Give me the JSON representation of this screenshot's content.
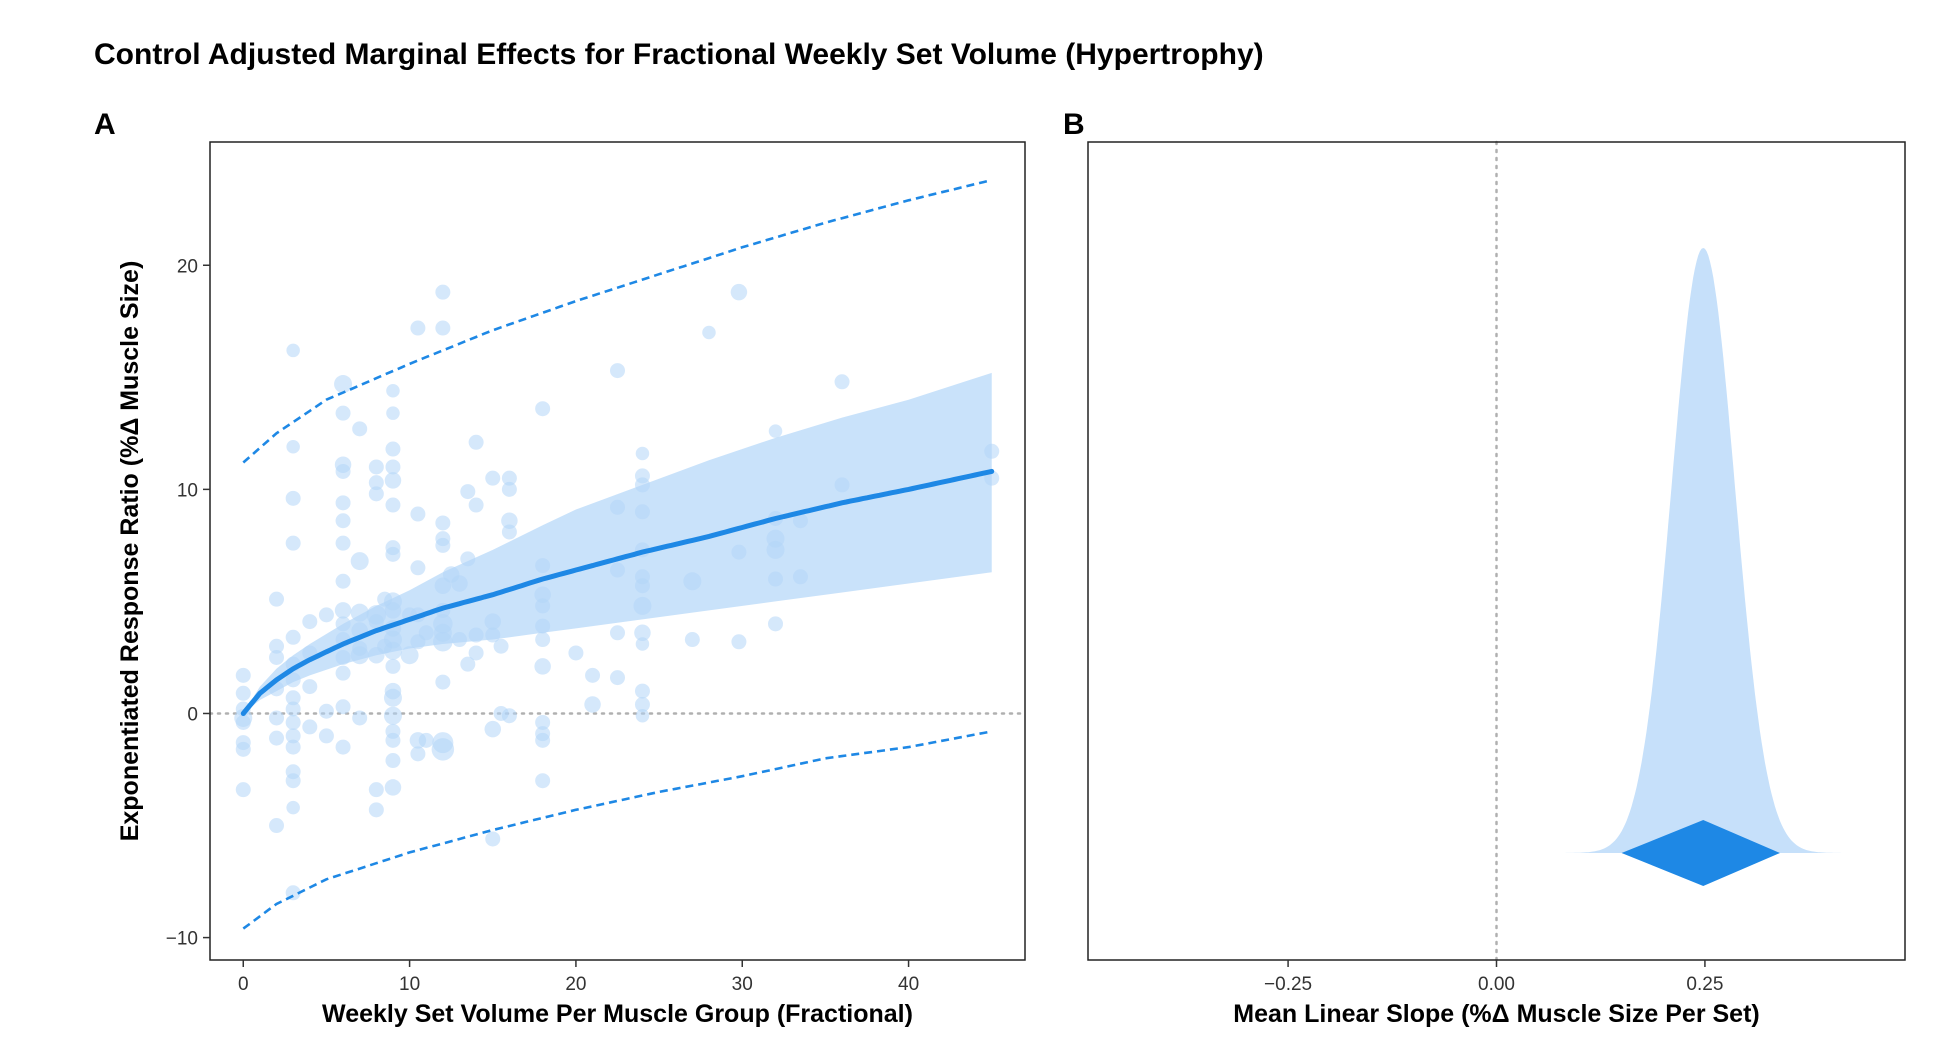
{
  "title": "Control Adjusted Marginal Effects for Fractional Weekly Set Volume (Hypertrophy)",
  "panel_labels": {
    "a": "A",
    "b": "B"
  },
  "colors": {
    "accent": "#1e88e5",
    "fill": "#c6e0fa",
    "points": "#b3d6f7",
    "reference": "#b0b0b0"
  },
  "chart_data": [
    {
      "panel": "A",
      "type": "scatter",
      "xlabel": "Weekly Set Volume Per Muscle Group (Fractional)",
      "ylabel": "Exponentiated Response Ratio (%Δ Muscle Size)",
      "xlim": [
        -2,
        47
      ],
      "ylim": [
        -11,
        25.5
      ],
      "xticks": [
        0,
        10,
        20,
        30,
        40
      ],
      "yticks": [
        -10,
        0,
        10,
        20
      ],
      "reference_line_y": 0,
      "grid": false,
      "fit_line": {
        "x": [
          0,
          1,
          2,
          3,
          4,
          6,
          8,
          10,
          12,
          15,
          18,
          20,
          24,
          28,
          32,
          36,
          40,
          45
        ],
        "y": [
          0,
          0.9,
          1.5,
          2.0,
          2.4,
          3.1,
          3.7,
          4.2,
          4.7,
          5.3,
          6.0,
          6.4,
          7.2,
          7.9,
          8.7,
          9.4,
          10.0,
          10.8
        ]
      },
      "confidence_band": {
        "x": [
          0,
          1,
          2,
          3,
          4,
          6,
          8,
          10,
          12,
          15,
          18,
          20,
          24,
          28,
          32,
          36,
          40,
          45
        ],
        "lower": [
          0,
          0.6,
          1.0,
          1.4,
          1.7,
          2.2,
          2.6,
          2.9,
          3.1,
          3.3,
          3.6,
          3.8,
          4.2,
          4.6,
          5.0,
          5.4,
          5.8,
          6.3
        ],
        "upper": [
          0,
          1.2,
          2.0,
          2.6,
          3.1,
          4.0,
          4.8,
          5.5,
          6.3,
          7.3,
          8.4,
          9.1,
          10.2,
          11.3,
          12.3,
          13.2,
          14.0,
          15.2
        ]
      },
      "prediction_interval": {
        "x": [
          0,
          2,
          5,
          10,
          15,
          20,
          25,
          30,
          35,
          40,
          45
        ],
        "lower": [
          -9.6,
          -8.5,
          -7.4,
          -6.2,
          -5.2,
          -4.3,
          -3.5,
          -2.8,
          -2.0,
          -1.5,
          -0.8
        ],
        "upper": [
          11.2,
          12.5,
          14.0,
          15.6,
          17.1,
          18.4,
          19.6,
          20.8,
          21.9,
          22.9,
          23.8
        ]
      },
      "points": [
        {
          "x": 0,
          "y": 1.7,
          "s": 1
        },
        {
          "x": 0,
          "y": 0.9,
          "s": 1
        },
        {
          "x": 0,
          "y": 0.2,
          "s": 1
        },
        {
          "x": 0,
          "y": -0.4,
          "s": 1
        },
        {
          "x": 0,
          "y": -1.3,
          "s": 1
        },
        {
          "x": 0,
          "y": -1.6,
          "s": 1
        },
        {
          "x": 0,
          "y": -3.4,
          "s": 1
        },
        {
          "x": 0,
          "y": -0.2,
          "s": 1.2
        },
        {
          "x": 2,
          "y": 5.1,
          "s": 1
        },
        {
          "x": 2,
          "y": 3.0,
          "s": 1
        },
        {
          "x": 2,
          "y": 2.5,
          "s": 1
        },
        {
          "x": 2,
          "y": 1.1,
          "s": 1
        },
        {
          "x": 2,
          "y": -0.2,
          "s": 1
        },
        {
          "x": 2,
          "y": -1.1,
          "s": 1
        },
        {
          "x": 2,
          "y": -5.0,
          "s": 1
        },
        {
          "x": 3,
          "y": 16.2,
          "s": 0.9
        },
        {
          "x": 3,
          "y": 11.9,
          "s": 0.9
        },
        {
          "x": 3,
          "y": 9.6,
          "s": 1
        },
        {
          "x": 3,
          "y": 7.6,
          "s": 1
        },
        {
          "x": 3,
          "y": 3.4,
          "s": 1
        },
        {
          "x": 3,
          "y": 2.2,
          "s": 1
        },
        {
          "x": 3,
          "y": 1.5,
          "s": 1
        },
        {
          "x": 3,
          "y": 0.7,
          "s": 1
        },
        {
          "x": 3,
          "y": 0.2,
          "s": 1
        },
        {
          "x": 3,
          "y": -0.4,
          "s": 1
        },
        {
          "x": 3,
          "y": -1.0,
          "s": 1
        },
        {
          "x": 3,
          "y": -1.5,
          "s": 1
        },
        {
          "x": 3,
          "y": -2.6,
          "s": 1
        },
        {
          "x": 3,
          "y": -3.0,
          "s": 1
        },
        {
          "x": 3,
          "y": -4.2,
          "s": 0.9
        },
        {
          "x": 3,
          "y": -8.0,
          "s": 1
        },
        {
          "x": 4,
          "y": 4.1,
          "s": 1
        },
        {
          "x": 4,
          "y": 2.7,
          "s": 1
        },
        {
          "x": 4,
          "y": 1.2,
          "s": 1
        },
        {
          "x": 4,
          "y": -0.6,
          "s": 1
        },
        {
          "x": 5,
          "y": 4.4,
          "s": 1
        },
        {
          "x": 5,
          "y": 0.1,
          "s": 1
        },
        {
          "x": 5,
          "y": -1.0,
          "s": 1
        },
        {
          "x": 6,
          "y": 14.7,
          "s": 1.2
        },
        {
          "x": 6,
          "y": 13.4,
          "s": 1
        },
        {
          "x": 6,
          "y": 11.1,
          "s": 1.1
        },
        {
          "x": 6,
          "y": 10.8,
          "s": 1
        },
        {
          "x": 6,
          "y": 9.4,
          "s": 1
        },
        {
          "x": 6,
          "y": 8.6,
          "s": 1
        },
        {
          "x": 6,
          "y": 7.6,
          "s": 1
        },
        {
          "x": 6,
          "y": 5.9,
          "s": 1
        },
        {
          "x": 6,
          "y": 4.6,
          "s": 1.1
        },
        {
          "x": 6,
          "y": 4.0,
          "s": 1
        },
        {
          "x": 6,
          "y": 3.3,
          "s": 1
        },
        {
          "x": 6,
          "y": 2.5,
          "s": 1
        },
        {
          "x": 6,
          "y": 1.8,
          "s": 1
        },
        {
          "x": 6,
          "y": 0.3,
          "s": 1
        },
        {
          "x": 6,
          "y": -1.5,
          "s": 1
        },
        {
          "x": 7,
          "y": 12.7,
          "s": 1
        },
        {
          "x": 7,
          "y": 6.8,
          "s": 1.2
        },
        {
          "x": 7,
          "y": 4.5,
          "s": 1.2
        },
        {
          "x": 7,
          "y": 3.7,
          "s": 1.1
        },
        {
          "x": 7,
          "y": 2.6,
          "s": 1.2
        },
        {
          "x": 7,
          "y": 2.9,
          "s": 1
        },
        {
          "x": 7,
          "y": -0.2,
          "s": 1
        },
        {
          "x": 8,
          "y": 11.0,
          "s": 1
        },
        {
          "x": 8,
          "y": 10.3,
          "s": 1
        },
        {
          "x": 8,
          "y": 9.8,
          "s": 1
        },
        {
          "x": 8,
          "y": 4.4,
          "s": 1.3
        },
        {
          "x": 8,
          "y": 4.1,
          "s": 1
        },
        {
          "x": 8,
          "y": 2.6,
          "s": 1.1
        },
        {
          "x": 8,
          "y": -3.4,
          "s": 1
        },
        {
          "x": 8,
          "y": -4.3,
          "s": 1
        },
        {
          "x": 8.5,
          "y": 5.1,
          "s": 1
        },
        {
          "x": 8.5,
          "y": 3.0,
          "s": 1
        },
        {
          "x": 9,
          "y": 14.4,
          "s": 0.9
        },
        {
          "x": 9,
          "y": 13.4,
          "s": 0.9
        },
        {
          "x": 9,
          "y": 11.8,
          "s": 1
        },
        {
          "x": 9,
          "y": 11.0,
          "s": 1
        },
        {
          "x": 9,
          "y": 10.4,
          "s": 1.1
        },
        {
          "x": 9,
          "y": 9.3,
          "s": 1
        },
        {
          "x": 9,
          "y": 7.4,
          "s": 1
        },
        {
          "x": 9,
          "y": 7.1,
          "s": 1
        },
        {
          "x": 9,
          "y": 5.0,
          "s": 1.2
        },
        {
          "x": 9,
          "y": 4.6,
          "s": 1.1
        },
        {
          "x": 9,
          "y": 3.8,
          "s": 1.1
        },
        {
          "x": 9,
          "y": 3.3,
          "s": 1.2
        },
        {
          "x": 9,
          "y": 2.8,
          "s": 1.2
        },
        {
          "x": 9,
          "y": 2.1,
          "s": 1
        },
        {
          "x": 9,
          "y": 1.0,
          "s": 1.1
        },
        {
          "x": 9,
          "y": 0.7,
          "s": 1.2
        },
        {
          "x": 9,
          "y": -0.1,
          "s": 1.2
        },
        {
          "x": 9,
          "y": -0.8,
          "s": 1
        },
        {
          "x": 9,
          "y": -1.2,
          "s": 1
        },
        {
          "x": 9,
          "y": -2.1,
          "s": 1
        },
        {
          "x": 9,
          "y": -3.3,
          "s": 1.1
        },
        {
          "x": 10,
          "y": 2.6,
          "s": 1.2
        },
        {
          "x": 10,
          "y": 4.4,
          "s": 1
        },
        {
          "x": 10.5,
          "y": 17.2,
          "s": 1
        },
        {
          "x": 10.5,
          "y": 8.9,
          "s": 1
        },
        {
          "x": 10.5,
          "y": 6.5,
          "s": 1
        },
        {
          "x": 10.5,
          "y": 4.4,
          "s": 1
        },
        {
          "x": 10.5,
          "y": 3.2,
          "s": 1
        },
        {
          "x": 10.5,
          "y": -1.2,
          "s": 1.1
        },
        {
          "x": 10.5,
          "y": -1.8,
          "s": 1
        },
        {
          "x": 11,
          "y": 3.6,
          "s": 1
        },
        {
          "x": 11,
          "y": -1.2,
          "s": 1
        },
        {
          "x": 12,
          "y": 18.8,
          "s": 1
        },
        {
          "x": 12,
          "y": 17.2,
          "s": 1
        },
        {
          "x": 12,
          "y": 8.5,
          "s": 1
        },
        {
          "x": 12,
          "y": 7.8,
          "s": 1
        },
        {
          "x": 12,
          "y": 7.5,
          "s": 1
        },
        {
          "x": 12,
          "y": 5.7,
          "s": 1.1
        },
        {
          "x": 12,
          "y": 4.6,
          "s": 1
        },
        {
          "x": 12,
          "y": 4.0,
          "s": 1.3
        },
        {
          "x": 12,
          "y": 3.6,
          "s": 1.2
        },
        {
          "x": 12,
          "y": 3.2,
          "s": 1.3
        },
        {
          "x": 12,
          "y": 1.4,
          "s": 1
        },
        {
          "x": 12,
          "y": -1.3,
          "s": 1.4
        },
        {
          "x": 12,
          "y": -1.6,
          "s": 1.5
        },
        {
          "x": 12.5,
          "y": 6.2,
          "s": 1.1
        },
        {
          "x": 13,
          "y": 5.8,
          "s": 1.1
        },
        {
          "x": 13,
          "y": 3.3,
          "s": 1
        },
        {
          "x": 13.5,
          "y": 9.9,
          "s": 1
        },
        {
          "x": 13.5,
          "y": 6.9,
          "s": 1
        },
        {
          "x": 13.5,
          "y": 2.2,
          "s": 1
        },
        {
          "x": 14,
          "y": 12.1,
          "s": 1
        },
        {
          "x": 14,
          "y": 9.3,
          "s": 1
        },
        {
          "x": 14,
          "y": 3.5,
          "s": 1
        },
        {
          "x": 14,
          "y": 2.7,
          "s": 1
        },
        {
          "x": 15,
          "y": 10.5,
          "s": 1
        },
        {
          "x": 15,
          "y": 4.1,
          "s": 1.1
        },
        {
          "x": 15,
          "y": 3.5,
          "s": 1
        },
        {
          "x": 15,
          "y": -0.7,
          "s": 1.1
        },
        {
          "x": 15,
          "y": -5.6,
          "s": 1
        },
        {
          "x": 15.5,
          "y": 3.0,
          "s": 1
        },
        {
          "x": 15.5,
          "y": 0.0,
          "s": 1
        },
        {
          "x": 16,
          "y": 10.5,
          "s": 1
        },
        {
          "x": 16,
          "y": 10.0,
          "s": 1
        },
        {
          "x": 16,
          "y": 8.6,
          "s": 1.1
        },
        {
          "x": 16,
          "y": 8.1,
          "s": 1
        },
        {
          "x": 16,
          "y": -0.1,
          "s": 1
        },
        {
          "x": 18,
          "y": 13.6,
          "s": 1
        },
        {
          "x": 18,
          "y": 6.6,
          "s": 1
        },
        {
          "x": 18,
          "y": 5.3,
          "s": 1.1
        },
        {
          "x": 18,
          "y": 4.8,
          "s": 1
        },
        {
          "x": 18,
          "y": 3.9,
          "s": 1
        },
        {
          "x": 18,
          "y": 3.3,
          "s": 1
        },
        {
          "x": 18,
          "y": 2.1,
          "s": 1.1
        },
        {
          "x": 18,
          "y": -0.4,
          "s": 1
        },
        {
          "x": 18,
          "y": -0.9,
          "s": 1
        },
        {
          "x": 18,
          "y": -1.2,
          "s": 1
        },
        {
          "x": 18,
          "y": -3.0,
          "s": 1
        },
        {
          "x": 20,
          "y": 2.7,
          "s": 1
        },
        {
          "x": 21,
          "y": 1.7,
          "s": 1
        },
        {
          "x": 21,
          "y": 0.4,
          "s": 1.1
        },
        {
          "x": 22.5,
          "y": 15.3,
          "s": 1
        },
        {
          "x": 22.5,
          "y": 9.2,
          "s": 1
        },
        {
          "x": 22.5,
          "y": 6.4,
          "s": 1
        },
        {
          "x": 22.5,
          "y": 3.6,
          "s": 1
        },
        {
          "x": 22.5,
          "y": 1.6,
          "s": 1
        },
        {
          "x": 24,
          "y": 11.6,
          "s": 0.9
        },
        {
          "x": 24,
          "y": 10.6,
          "s": 1
        },
        {
          "x": 24,
          "y": 10.2,
          "s": 1
        },
        {
          "x": 24,
          "y": 9.0,
          "s": 1
        },
        {
          "x": 24,
          "y": 7.3,
          "s": 1
        },
        {
          "x": 24,
          "y": 6.1,
          "s": 1
        },
        {
          "x": 24,
          "y": 5.7,
          "s": 1
        },
        {
          "x": 24,
          "y": 4.8,
          "s": 1.2
        },
        {
          "x": 24,
          "y": 3.6,
          "s": 1.1
        },
        {
          "x": 24,
          "y": 3.1,
          "s": 0.9
        },
        {
          "x": 24,
          "y": 1.0,
          "s": 1
        },
        {
          "x": 24,
          "y": 0.4,
          "s": 1
        },
        {
          "x": 24,
          "y": -0.1,
          "s": 0.9
        },
        {
          "x": 27,
          "y": 5.9,
          "s": 1.2
        },
        {
          "x": 27,
          "y": 3.3,
          "s": 1
        },
        {
          "x": 28,
          "y": 17.0,
          "s": 0.9
        },
        {
          "x": 29.8,
          "y": 18.8,
          "s": 1.1
        },
        {
          "x": 29.8,
          "y": 7.2,
          "s": 1
        },
        {
          "x": 29.8,
          "y": 3.2,
          "s": 1
        },
        {
          "x": 32,
          "y": 12.6,
          "s": 0.9
        },
        {
          "x": 32,
          "y": 8.7,
          "s": 1
        },
        {
          "x": 32,
          "y": 7.8,
          "s": 1.2
        },
        {
          "x": 32,
          "y": 7.3,
          "s": 1.2
        },
        {
          "x": 32,
          "y": 6.0,
          "s": 1
        },
        {
          "x": 32,
          "y": 4.0,
          "s": 1
        },
        {
          "x": 33.5,
          "y": 8.6,
          "s": 1
        },
        {
          "x": 33.5,
          "y": 6.1,
          "s": 1
        },
        {
          "x": 36,
          "y": 14.8,
          "s": 1
        },
        {
          "x": 36,
          "y": 10.2,
          "s": 1
        },
        {
          "x": 45,
          "y": 11.7,
          "s": 1
        },
        {
          "x": 45,
          "y": 10.5,
          "s": 1
        }
      ]
    },
    {
      "panel": "B",
      "type": "area",
      "subtype": "density",
      "xlabel": "Mean Linear Slope (%Δ Muscle Size Per Set)",
      "ylabel": "",
      "xlim": [
        -0.49,
        0.49
      ],
      "xticks": [
        -0.25,
        0.0,
        0.25
      ],
      "xtick_labels": [
        "−0.25",
        "0.00",
        "0.25"
      ],
      "reference_line_x": 0,
      "grid": false,
      "density": {
        "mean": 0.248,
        "sd": 0.038,
        "xmin": 0.03,
        "xmax": 0.44
      },
      "point_estimate": 0.248,
      "interval": [
        0.15,
        0.34
      ]
    }
  ]
}
